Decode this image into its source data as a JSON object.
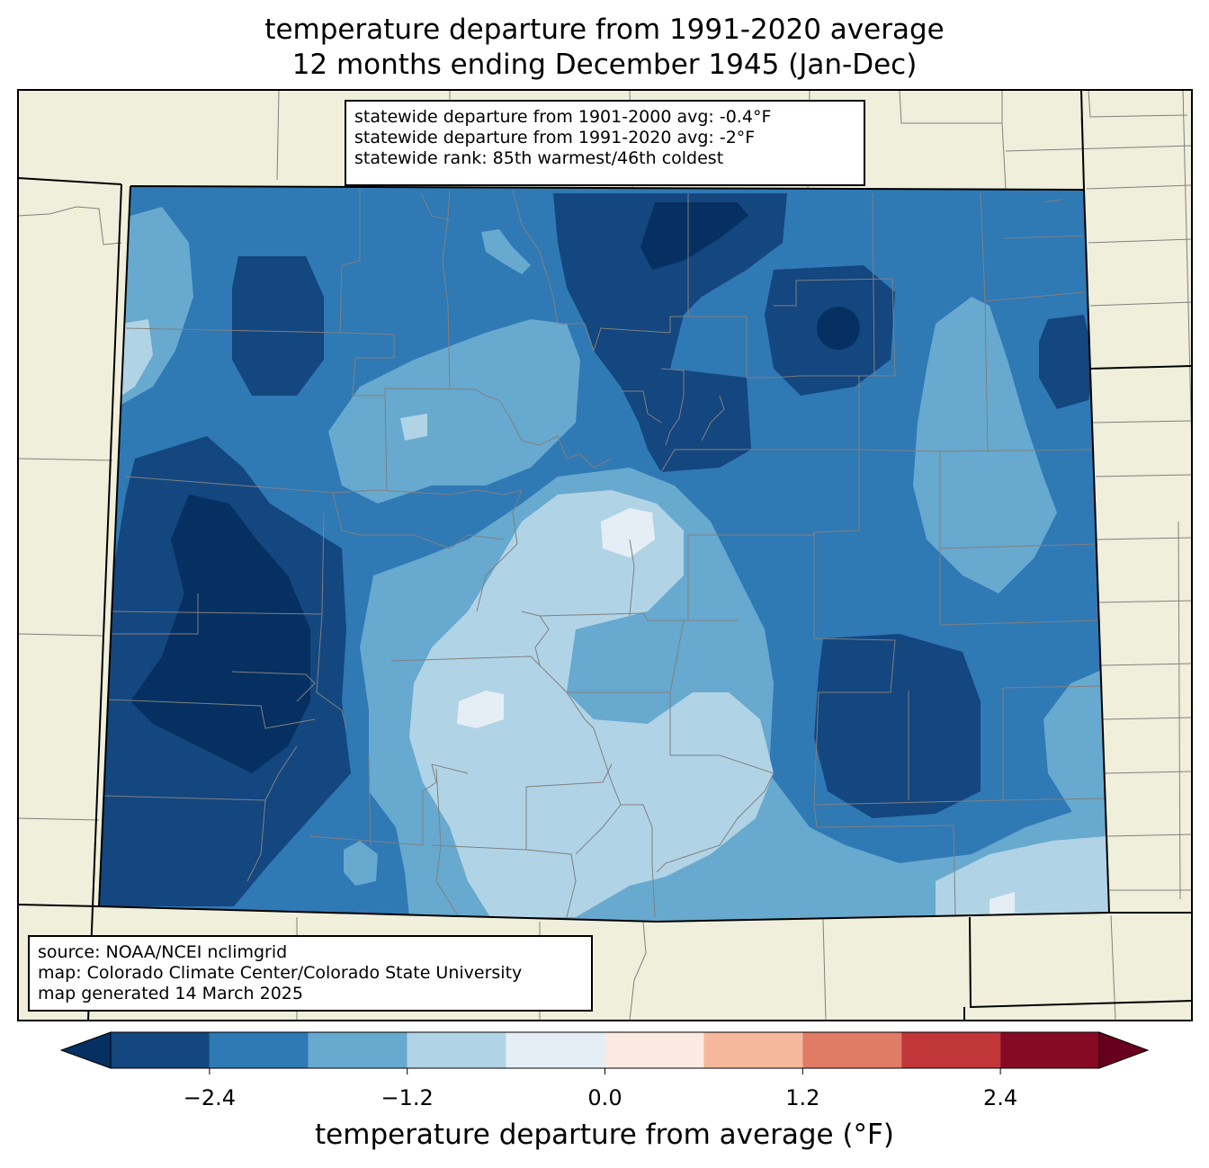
{
  "title": {
    "line1": "temperature departure from 1991-2020 average",
    "line2": "12 months ending December 1945 (Jan-Dec)"
  },
  "stats_box": {
    "line1": "statewide departure from 1901-2000 avg: -0.4°F",
    "line2": "statewide departure from 1991-2020 avg: -2°F",
    "line3": "statewide rank: 85th warmest/46th coldest"
  },
  "source_box": {
    "line1": "source: NOAA/NCEI nclimgrid",
    "line2": "map: Colorado Climate Center/Colorado State University",
    "line3": "map generated 14 March 2025"
  },
  "colorbar": {
    "label": "temperature departure from average (°F)",
    "ticks": [
      "−2.4",
      "−1.2",
      "0.0",
      "1.2",
      "2.4"
    ],
    "tick_values": [
      -2.4,
      -1.2,
      0.0,
      1.2,
      2.4
    ],
    "bounds": [
      -3.0,
      -2.4,
      -1.8,
      -1.2,
      -0.6,
      0.0,
      0.6,
      1.2,
      1.8,
      2.4,
      3.0
    ],
    "colors": [
      "#14467f",
      "#2f79b5",
      "#67a9cf",
      "#b1d3e6",
      "#e5eef4",
      "#faeae1",
      "#f6b89c",
      "#e07b65",
      "#c13639",
      "#870a24"
    ],
    "under_color": "#053061",
    "over_color": "#67001f"
  },
  "map_colors": {
    "background": "#f0efdc",
    "state_border": "#000000",
    "county_line": "#808080"
  }
}
